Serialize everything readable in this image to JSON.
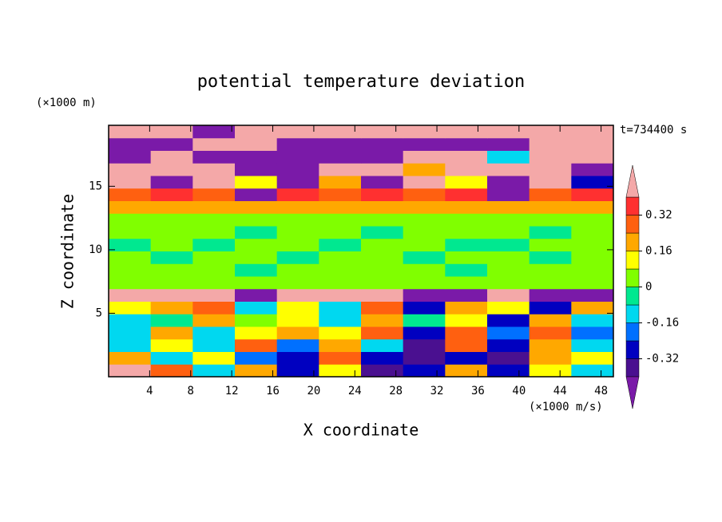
{
  "chart_data": {
    "type": "contour",
    "title": "potential temperature deviation",
    "x_label": "X coordinate",
    "y_label": "Z coordinate",
    "x_unit": "(×1000 m/s)",
    "y_unit": "(×1000 m)",
    "time_label": "t=734400 s",
    "xlim": [
      0,
      49.2
    ],
    "ylim": [
      0,
      19.8
    ],
    "xticks": [
      4,
      8,
      12,
      16,
      20,
      24,
      28,
      32,
      36,
      40,
      44,
      48
    ],
    "yticks": [
      5,
      10,
      15
    ],
    "levels": [
      -0.4,
      -0.32,
      -0.24,
      -0.16,
      -0.08,
      0,
      0.08,
      0.16,
      0.24,
      0.32,
      0.4
    ],
    "colors": [
      "#7a1aa8",
      "#4a1090",
      "#0000c0",
      "#0070ff",
      "#00d8f0",
      "#00e890",
      "#80ff00",
      "#ffff00",
      "#ffa800",
      "#ff6010",
      "#ff3030",
      "#f4a8a8"
    ],
    "colorbar_ticks": [
      0.32,
      0.16,
      0,
      -0.16,
      -0.32
    ],
    "field": [
      [
        0.45,
        0.3,
        -0.1,
        0.2,
        -0.3,
        0.1,
        -0.35,
        -0.3,
        0.2,
        -0.3,
        0.1,
        -0.1
      ],
      [
        0.2,
        -0.1,
        0.1,
        -0.2,
        -0.3,
        0.3,
        -0.3,
        -0.35,
        -0.3,
        -0.35,
        0.2,
        0.1
      ],
      [
        -0.1,
        0.1,
        -0.1,
        0.3,
        -0.2,
        0.2,
        -0.1,
        -0.35,
        0.3,
        -0.3,
        0.2,
        -0.1
      ],
      [
        -0.1,
        0.2,
        -0.1,
        0.1,
        0.2,
        0.1,
        0.3,
        -0.3,
        0.3,
        -0.2,
        0.3,
        -0.2
      ],
      [
        -0.1,
        -0.05,
        0.2,
        0.05,
        0.1,
        -0.1,
        0.2,
        -0.05,
        0.1,
        -0.3,
        0.2,
        -0.1
      ],
      [
        0.1,
        0.2,
        0.3,
        -0.1,
        0.1,
        -0.1,
        0.3,
        -0.3,
        0.2,
        0.1,
        -0.3,
        0.2
      ],
      [
        0.45,
        0.45,
        0.45,
        -0.45,
        0.45,
        0.45,
        0.45,
        -0.45,
        -0.45,
        0.45,
        -0.45,
        -0.45
      ],
      [
        0.05,
        0.05,
        0.05,
        0.05,
        0.05,
        0.05,
        0.05,
        0.05,
        0.05,
        0.05,
        0.05,
        0.05
      ],
      [
        0.05,
        0.03,
        0.05,
        -0.03,
        0.05,
        0.03,
        0.05,
        0.03,
        -0.03,
        0.05,
        0.03,
        0.05
      ],
      [
        0.03,
        -0.03,
        0.05,
        0.03,
        -0.03,
        0.05,
        0.03,
        -0.03,
        0.05,
        0.03,
        -0.03,
        0.05
      ],
      [
        -0.03,
        0.03,
        -0.03,
        0.05,
        0.03,
        -0.03,
        0.05,
        0.03,
        -0.03,
        -0.03,
        0.05,
        0.03
      ],
      [
        0.03,
        0.05,
        0.03,
        -0.03,
        0.05,
        0.03,
        -0.03,
        0.05,
        0.03,
        0.05,
        -0.03,
        0.03
      ],
      [
        0.05,
        0.05,
        0.05,
        0.05,
        0.05,
        0.05,
        0.05,
        0.05,
        0.05,
        0.05,
        0.05,
        0.05
      ],
      [
        0.2,
        0.2,
        0.2,
        0.2,
        0.2,
        0.2,
        0.2,
        0.2,
        0.2,
        0.2,
        0.2,
        0.2
      ],
      [
        0.3,
        0.35,
        0.3,
        -0.45,
        0.35,
        0.3,
        0.35,
        0.3,
        0.35,
        -0.45,
        0.3,
        0.35
      ],
      [
        0.45,
        -0.45,
        0.45,
        0.1,
        -0.45,
        0.2,
        -0.45,
        0.45,
        0.1,
        -0.45,
        0.45,
        -0.3
      ],
      [
        0.45,
        0.45,
        0.45,
        -0.45,
        -0.45,
        0.45,
        0.45,
        0.2,
        0.45,
        0.45,
        0.45,
        -0.45
      ],
      [
        -0.45,
        0.45,
        -0.45,
        -0.45,
        -0.45,
        -0.45,
        -0.45,
        0.45,
        0.45,
        -0.1,
        0.45,
        0.45
      ],
      [
        -0.45,
        -0.45,
        0.45,
        0.45,
        -0.45,
        -0.45,
        -0.45,
        -0.45,
        -0.45,
        -0.45,
        0.45,
        0.45
      ],
      [
        0.45,
        0.45,
        -0.45,
        0.45,
        0.45,
        0.45,
        0.45,
        0.45,
        0.45,
        0.45,
        0.45,
        0.45
      ]
    ]
  }
}
